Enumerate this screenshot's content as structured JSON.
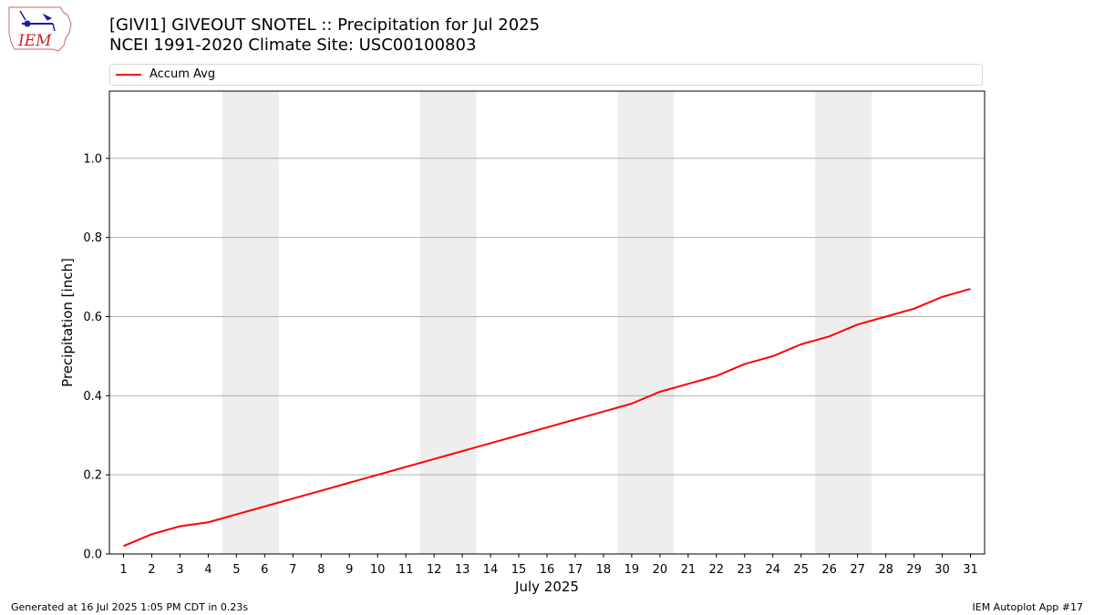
{
  "header": {
    "title_line1": "[GIVI1] GIVEOUT SNOTEL :: Precipitation for Jul 2025",
    "title_line2": "NCEI 1991-2020 Climate Site: USC00100803",
    "logo_text": "IEM"
  },
  "footer": {
    "left": "Generated at 16 Jul 2025 1:05 PM CDT in 0.23s",
    "right": "IEM Autoplot App #17"
  },
  "colors": {
    "series": "#ff0000",
    "weekend_band": "#eeeeee",
    "grid": "#b0b0b0",
    "logo": "#1a1aa6",
    "logo_text": "#cc2222"
  },
  "chart_data": {
    "type": "line",
    "xlabel": "July 2025",
    "ylabel": "Precipitation [inch]",
    "xlim": [
      0.5,
      31.5
    ],
    "ylim": [
      0,
      1.17
    ],
    "yticks": [
      0.0,
      0.2,
      0.4,
      0.6,
      0.8,
      1.0
    ],
    "ytick_labels": [
      "0.0",
      "0.2",
      "0.4",
      "0.6",
      "0.8",
      "1.0"
    ],
    "x": [
      1,
      2,
      3,
      4,
      5,
      6,
      7,
      8,
      9,
      10,
      11,
      12,
      13,
      14,
      15,
      16,
      17,
      18,
      19,
      20,
      21,
      22,
      23,
      24,
      25,
      26,
      27,
      28,
      29,
      30,
      31
    ],
    "xtick_labels": [
      "1",
      "2",
      "3",
      "4",
      "5",
      "6",
      "7",
      "8",
      "9",
      "10",
      "11",
      "12",
      "13",
      "14",
      "15",
      "16",
      "17",
      "18",
      "19",
      "20",
      "21",
      "22",
      "23",
      "24",
      "25",
      "26",
      "27",
      "28",
      "29",
      "30",
      "31"
    ],
    "grid": "horizontal",
    "legend_position": "top",
    "weekend_bands": [
      [
        5,
        6
      ],
      [
        12,
        13
      ],
      [
        19,
        20
      ],
      [
        26,
        27
      ]
    ],
    "series": [
      {
        "name": "Accum Avg",
        "values": [
          0.02,
          0.05,
          0.07,
          0.08,
          0.1,
          0.12,
          0.14,
          0.16,
          0.18,
          0.2,
          0.22,
          0.24,
          0.26,
          0.28,
          0.3,
          0.32,
          0.34,
          0.36,
          0.38,
          0.41,
          0.43,
          0.45,
          0.48,
          0.5,
          0.53,
          0.55,
          0.58,
          0.6,
          0.62,
          0.65,
          0.67
        ]
      }
    ]
  }
}
